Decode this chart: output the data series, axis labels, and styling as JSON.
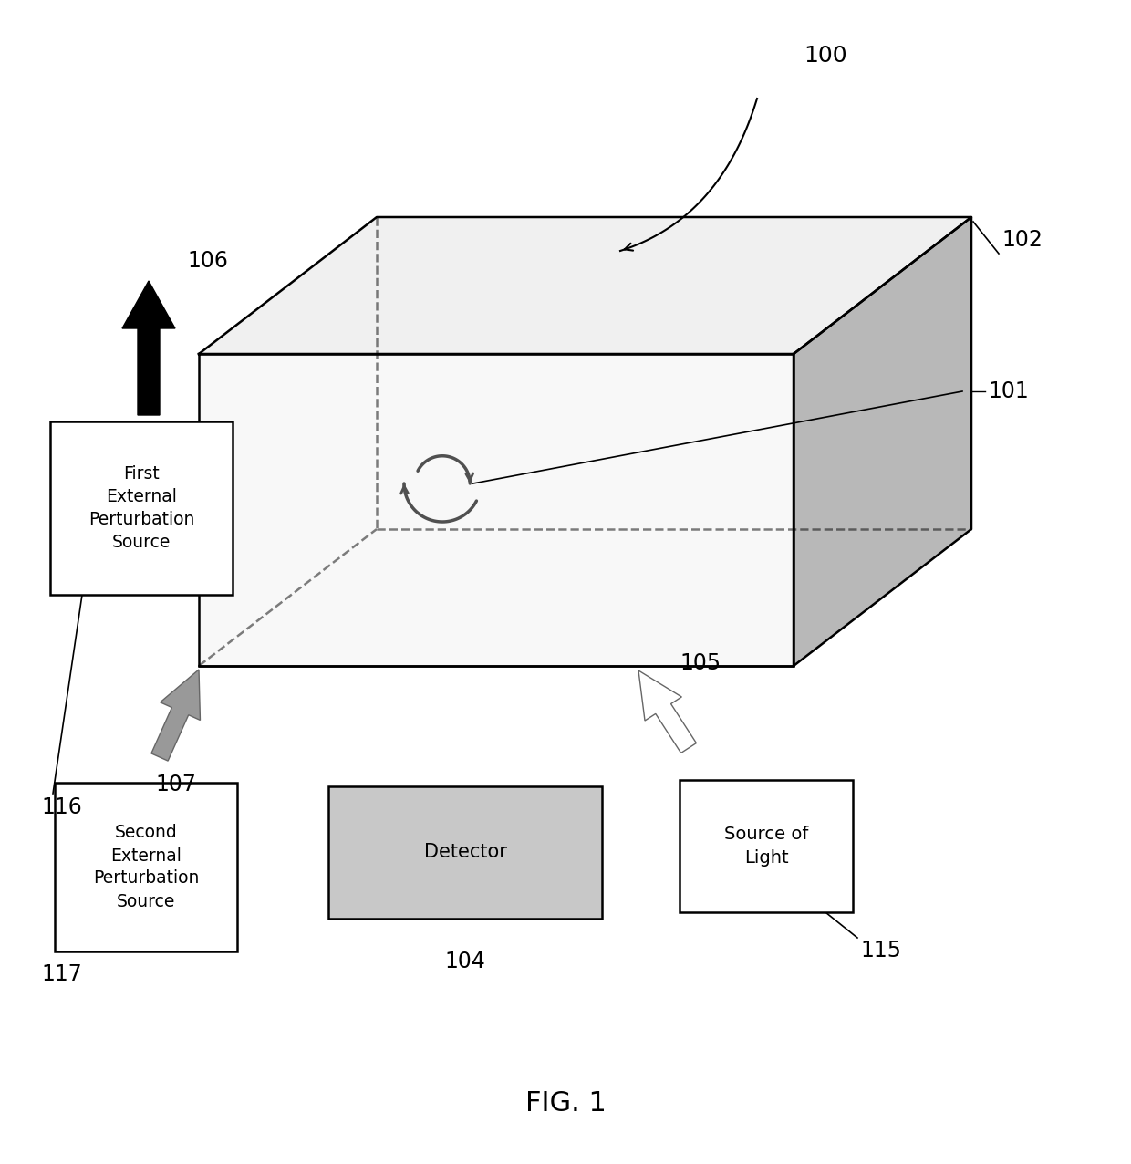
{
  "title": "FIG. 1",
  "bg_color": "#ffffff",
  "lc": "#000000",
  "lw": 1.8,
  "label_100": "100",
  "label_101": "101",
  "label_102": "102",
  "label_104": "104",
  "label_105": "105",
  "label_106": "106",
  "label_107": "107",
  "label_115": "115",
  "label_116": "116",
  "label_117": "117",
  "text_first_ext": "First\nExternal\nPerturbation\nSource",
  "text_second_ext": "Second\nExternal\nPerturbation\nSource",
  "text_detector": "Detector",
  "text_source_light": "Source of\nLight",
  "shade_color": "#b8b8b8",
  "top_face_color": "#f0f0f0",
  "front_face_color": "#f8f8f8",
  "detector_fill": "#c8c8c8",
  "gray_arrow_fill": "#999999",
  "gray_arrow_edge": "#666666"
}
